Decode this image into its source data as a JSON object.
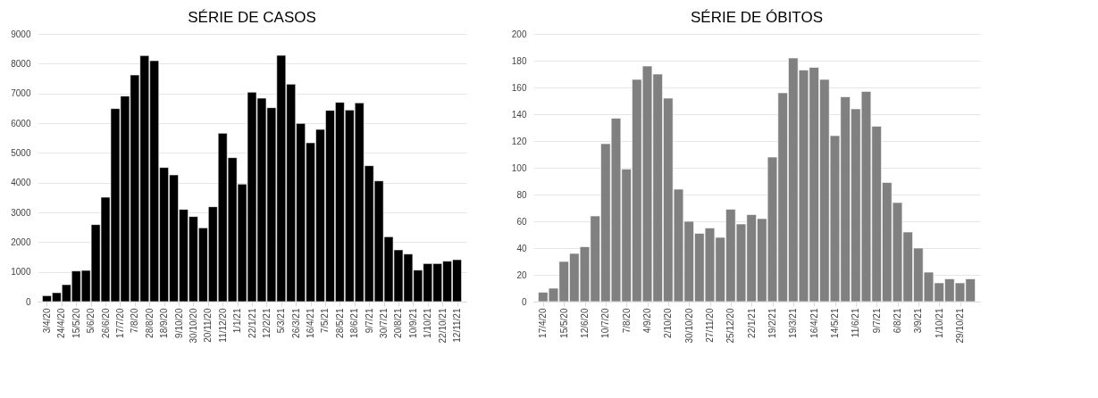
{
  "chart_data": [
    {
      "type": "bar",
      "title": "SÉRIE DE CASOS",
      "color": "#000000",
      "grid": "y",
      "x": [
        "2020-04-03",
        "2020-04-17",
        "2020-05-01",
        "2020-05-15",
        "2020-05-29",
        "2020-06-12",
        "2020-06-26",
        "2020-07-10",
        "2020-07-24",
        "2020-08-07",
        "2020-08-21",
        "2020-09-04",
        "2020-09-18",
        "2020-10-02",
        "2020-10-16",
        "2020-10-30",
        "2020-11-13",
        "2020-11-27",
        "2020-12-11",
        "2020-12-25",
        "2021-01-08",
        "2021-01-22",
        "2021-02-05",
        "2021-02-19",
        "2021-03-05",
        "2021-03-19",
        "2021-04-02",
        "2021-04-16",
        "2021-04-30",
        "2021-05-14",
        "2021-05-28",
        "2021-06-11",
        "2021-06-25",
        "2021-07-09",
        "2021-07-23",
        "2021-08-06",
        "2021-08-20",
        "2021-09-03",
        "2021-09-17",
        "2021-10-01",
        "2021-10-15",
        "2021-10-29",
        "2021-11-12"
      ],
      "values": [
        200,
        300,
        570,
        1030,
        1050,
        2590,
        3510,
        6490,
        6910,
        7620,
        8270,
        8100,
        4510,
        4260,
        3100,
        2860,
        2480,
        3190,
        5660,
        4840,
        3950,
        7040,
        6840,
        6520,
        8280,
        7310,
        5990,
        5340,
        5790,
        6430,
        6700,
        6440,
        6680,
        4570,
        4060,
        2180,
        1740,
        1600,
        1060,
        1280,
        1280,
        1360,
        1410
      ],
      "xlim": [
        "2020-03-27",
        "2021-11-19"
      ],
      "xticks": [
        {
          "value": "2020-04-03",
          "label": "3/4/20"
        },
        {
          "value": "2020-04-24",
          "label": "24/4/20"
        },
        {
          "value": "2020-05-15",
          "label": "15/5/20"
        },
        {
          "value": "2020-06-05",
          "label": "5/6/20"
        },
        {
          "value": "2020-06-26",
          "label": "26/6/20"
        },
        {
          "value": "2020-07-17",
          "label": "17/7/20"
        },
        {
          "value": "2020-08-07",
          "label": "7/8/20"
        },
        {
          "value": "2020-08-28",
          "label": "28/8/20"
        },
        {
          "value": "2020-09-18",
          "label": "18/9/20"
        },
        {
          "value": "2020-10-09",
          "label": "9/10/20"
        },
        {
          "value": "2020-10-30",
          "label": "30/10/20"
        },
        {
          "value": "2020-11-20",
          "label": "20/11/20"
        },
        {
          "value": "2020-12-11",
          "label": "11/12/20"
        },
        {
          "value": "2021-01-01",
          "label": "1/1/21"
        },
        {
          "value": "2021-01-22",
          "label": "22/1/21"
        },
        {
          "value": "2021-02-12",
          "label": "12/2/21"
        },
        {
          "value": "2021-03-05",
          "label": "5/3/21"
        },
        {
          "value": "2021-03-26",
          "label": "26/3/21"
        },
        {
          "value": "2021-04-16",
          "label": "16/4/21"
        },
        {
          "value": "2021-05-07",
          "label": "7/5/21"
        },
        {
          "value": "2021-05-28",
          "label": "28/5/21"
        },
        {
          "value": "2021-06-18",
          "label": "18/6/21"
        },
        {
          "value": "2021-07-09",
          "label": "9/7/21"
        },
        {
          "value": "2021-07-30",
          "label": "30/7/21"
        },
        {
          "value": "2021-08-20",
          "label": "20/8/21"
        },
        {
          "value": "2021-09-10",
          "label": "10/9/21"
        },
        {
          "value": "2021-10-01",
          "label": "1/10/21"
        },
        {
          "value": "2021-10-22",
          "label": "22/10/21"
        },
        {
          "value": "2021-11-12",
          "label": "12/11/21"
        }
      ],
      "ylim": [
        0,
        9000
      ],
      "yticks": [
        0,
        1000,
        2000,
        3000,
        4000,
        5000,
        6000,
        7000,
        8000,
        9000
      ]
    },
    {
      "type": "bar",
      "title": "SÉRIE DE ÓBITOS",
      "color": "#808080",
      "grid": "y",
      "x": [
        "2020-04-17",
        "2020-05-01",
        "2020-05-15",
        "2020-05-29",
        "2020-06-12",
        "2020-06-26",
        "2020-07-10",
        "2020-07-24",
        "2020-08-07",
        "2020-08-21",
        "2020-09-04",
        "2020-09-18",
        "2020-10-02",
        "2020-10-16",
        "2020-10-30",
        "2020-11-13",
        "2020-11-27",
        "2020-12-11",
        "2020-12-25",
        "2021-01-08",
        "2021-01-22",
        "2021-02-05",
        "2021-02-19",
        "2021-03-05",
        "2021-03-19",
        "2021-04-02",
        "2021-04-16",
        "2021-04-30",
        "2021-05-14",
        "2021-05-28",
        "2021-06-11",
        "2021-06-25",
        "2021-07-09",
        "2021-07-23",
        "2021-08-06",
        "2021-08-20",
        "2021-09-03",
        "2021-09-17",
        "2021-10-01",
        "2021-10-15",
        "2021-10-29",
        "2021-11-12"
      ],
      "values": [
        7,
        10,
        30,
        36,
        41,
        64,
        118,
        137,
        99,
        166,
        176,
        170,
        152,
        84,
        60,
        51,
        55,
        48,
        69,
        58,
        65,
        62,
        108,
        156,
        182,
        173,
        175,
        166,
        124,
        153,
        144,
        157,
        131,
        89,
        74,
        52,
        40,
        22,
        14,
        17,
        14,
        17
      ],
      "xlim": [
        "2020-04-10",
        "2021-11-19"
      ],
      "xticks": [
        {
          "value": "2020-04-17",
          "label": "17/4/20"
        },
        {
          "value": "2020-05-15",
          "label": "15/5/20"
        },
        {
          "value": "2020-06-12",
          "label": "12/6/20"
        },
        {
          "value": "2020-07-10",
          "label": "10/7/20"
        },
        {
          "value": "2020-08-07",
          "label": "7/8/20"
        },
        {
          "value": "2020-09-04",
          "label": "4/9/20"
        },
        {
          "value": "2020-10-02",
          "label": "2/10/20"
        },
        {
          "value": "2020-10-30",
          "label": "30/10/20"
        },
        {
          "value": "2020-11-27",
          "label": "27/11/20"
        },
        {
          "value": "2020-12-25",
          "label": "25/12/20"
        },
        {
          "value": "2021-01-22",
          "label": "22/1/21"
        },
        {
          "value": "2021-02-19",
          "label": "19/2/21"
        },
        {
          "value": "2021-03-19",
          "label": "19/3/21"
        },
        {
          "value": "2021-04-16",
          "label": "16/4/21"
        },
        {
          "value": "2021-05-14",
          "label": "14/5/21"
        },
        {
          "value": "2021-06-11",
          "label": "11/6/21"
        },
        {
          "value": "2021-07-09",
          "label": "9/7/21"
        },
        {
          "value": "2021-08-06",
          "label": "6/8/21"
        },
        {
          "value": "2021-09-03",
          "label": "3/9/21"
        },
        {
          "value": "2021-10-01",
          "label": "1/10/21"
        },
        {
          "value": "2021-10-29",
          "label": "29/10/21"
        }
      ],
      "ylim": [
        0,
        200
      ],
      "yticks": [
        0,
        20,
        40,
        60,
        80,
        100,
        120,
        140,
        160,
        180,
        200
      ]
    }
  ]
}
